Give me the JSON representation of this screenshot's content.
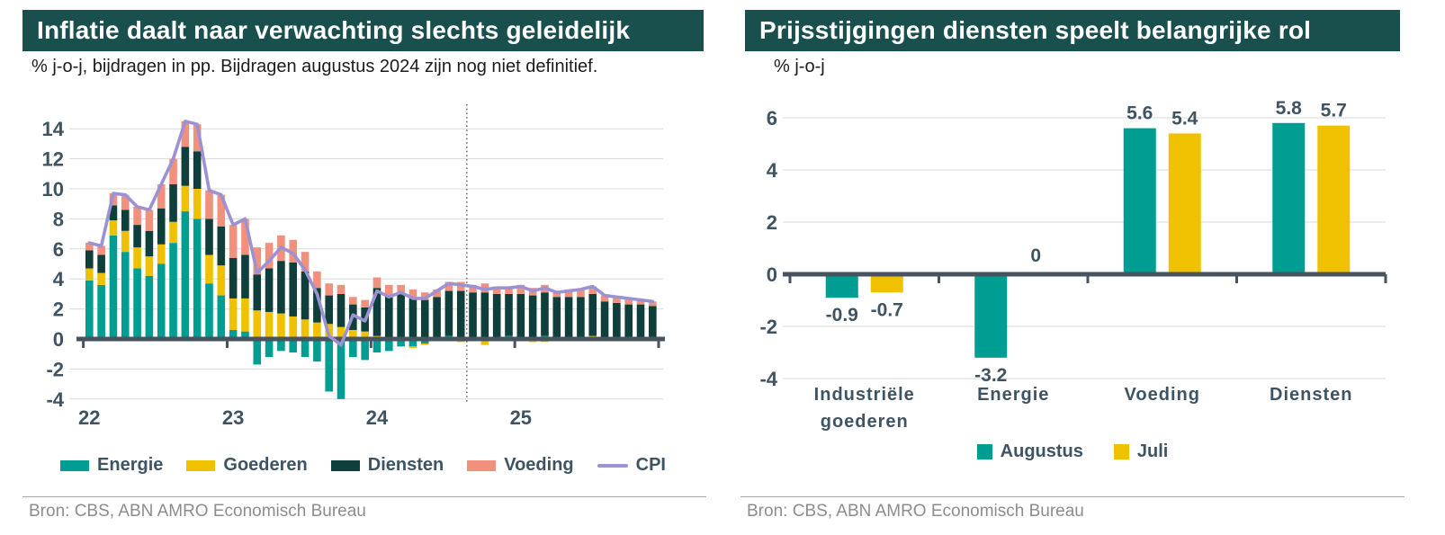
{
  "colors": {
    "header_bg": "#19504e",
    "header_text": "#ffffff",
    "energie": "#009e92",
    "goederen": "#efc100",
    "diensten": "#0f3f3a",
    "voeding": "#f1907c",
    "cpi_line": "#9c92d3",
    "axis": "#47545f",
    "tick_text": "#3e5462",
    "gridline": "#dadada",
    "forecast_line": "#3a3a3a",
    "source_text": "#8c8c8c"
  },
  "chart_data": [
    {
      "type": "bar",
      "stacked": true,
      "title": "Inflatie daalt naar verwachting slechts geleidelijk",
      "subtitle": "% j-o-j, bijdragen in pp. Bijdragen augustus 2024 zijn nog niet definitief.",
      "source": "Bron: CBS, ABN AMRO Economisch Bureau",
      "x": [
        "2022-01",
        "2022-02",
        "2022-03",
        "2022-04",
        "2022-05",
        "2022-06",
        "2022-07",
        "2022-08",
        "2022-09",
        "2022-10",
        "2022-11",
        "2022-12",
        "2023-01",
        "2023-02",
        "2023-03",
        "2023-04",
        "2023-05",
        "2023-06",
        "2023-07",
        "2023-08",
        "2023-09",
        "2023-10",
        "2023-11",
        "2023-12",
        "2024-01",
        "2024-02",
        "2024-03",
        "2024-04",
        "2024-05",
        "2024-06",
        "2024-07",
        "2024-08",
        "2024-09",
        "2024-10",
        "2024-11",
        "2024-12",
        "2025-01",
        "2025-02",
        "2025-03",
        "2025-04",
        "2025-05",
        "2025-06",
        "2025-07",
        "2025-08",
        "2025-09",
        "2025-10",
        "2025-11",
        "2025-12"
      ],
      "x_tick_labels": [
        "22",
        "23",
        "24",
        "25"
      ],
      "x_tick_positions": [
        0,
        12,
        24,
        36
      ],
      "ylim": [
        -5,
        15
      ],
      "yticks": [
        -4,
        -2,
        0,
        2,
        4,
        6,
        8,
        10,
        12,
        14
      ],
      "grid": true,
      "forecast_divider_after_index": 31,
      "series": [
        {
          "name": "Energie",
          "color_key": "energie",
          "values": [
            3.9,
            3.6,
            6.9,
            5.8,
            4.7,
            4.2,
            5.0,
            6.4,
            8.5,
            8.0,
            3.7,
            2.9,
            0.6,
            0.5,
            -1.7,
            -1.2,
            -0.8,
            -0.9,
            -1.2,
            -1.5,
            -3.5,
            -4.0,
            -1.2,
            -1.4,
            -0.9,
            -0.8,
            -0.5,
            -0.5,
            -0.3,
            0.1,
            0.2,
            0.1,
            0.1,
            -0.1,
            0.1,
            0.2,
            0.0,
            -0.1,
            0.2,
            0.0,
            0.1,
            0.0,
            0.1,
            0.0,
            0.0,
            0.0,
            0.0,
            0.0
          ]
        },
        {
          "name": "Goederen",
          "color_key": "goederen",
          "values": [
            0.8,
            0.8,
            1.0,
            1.4,
            1.4,
            1.3,
            1.3,
            1.4,
            1.7,
            2.0,
            1.9,
            2.0,
            2.1,
            2.2,
            1.9,
            1.8,
            1.7,
            1.5,
            1.3,
            1.1,
            1.0,
            0.8,
            0.6,
            0.5,
            0.2,
            0.1,
            0.1,
            -0.1,
            -0.1,
            -0.1,
            -0.1,
            -0.2,
            -0.1,
            -0.3,
            -0.1,
            -0.1,
            -0.1,
            -0.1,
            -0.2,
            -0.1,
            -0.1,
            0.0,
            0.1,
            0.1,
            0.0,
            0.0,
            0.1,
            0.0
          ]
        },
        {
          "name": "Diensten",
          "color_key": "diensten",
          "values": [
            1.2,
            1.2,
            1.0,
            1.4,
            1.5,
            1.7,
            2.4,
            2.5,
            2.6,
            2.5,
            2.4,
            2.6,
            2.7,
            2.9,
            2.4,
            2.9,
            3.5,
            3.6,
            3.2,
            2.3,
            1.9,
            2.2,
            1.7,
            1.6,
            3.2,
            2.8,
            2.9,
            2.7,
            2.6,
            2.7,
            3.0,
            3.1,
            3.0,
            3.1,
            2.9,
            2.8,
            3.0,
            2.9,
            2.9,
            2.8,
            2.7,
            2.8,
            2.8,
            2.4,
            2.4,
            2.3,
            2.2,
            2.2
          ]
        },
        {
          "name": "Voeding",
          "color_key": "voeding",
          "values": [
            0.5,
            0.6,
            0.8,
            1.0,
            1.2,
            1.4,
            1.6,
            1.7,
            1.7,
            1.8,
            1.9,
            2.1,
            2.2,
            2.4,
            1.8,
            1.7,
            1.7,
            1.5,
            1.3,
            1.1,
            0.8,
            0.6,
            0.5,
            0.5,
            0.7,
            0.7,
            0.6,
            0.6,
            0.5,
            0.5,
            0.6,
            0.6,
            0.5,
            0.6,
            0.5,
            0.5,
            0.6,
            0.5,
            0.5,
            0.4,
            0.5,
            0.5,
            0.5,
            0.4,
            0.4,
            0.4,
            0.3,
            0.3
          ]
        }
      ],
      "line": {
        "name": "CPI",
        "color_key": "cpi_line",
        "values": [
          6.4,
          6.2,
          9.7,
          9.6,
          8.8,
          8.6,
          10.3,
          12.0,
          14.5,
          14.3,
          9.9,
          9.6,
          7.6,
          8.0,
          4.4,
          5.2,
          6.1,
          5.7,
          4.6,
          3.0,
          0.2,
          -0.4,
          1.6,
          1.2,
          3.2,
          2.8,
          3.1,
          2.7,
          2.7,
          3.2,
          3.7,
          3.6,
          3.5,
          3.3,
          3.4,
          3.4,
          3.5,
          3.2,
          3.4,
          3.1,
          3.2,
          3.3,
          3.5,
          2.9,
          2.8,
          2.7,
          2.6,
          2.5
        ]
      },
      "legend": [
        "Energie",
        "Goederen",
        "Diensten",
        "Voeding",
        "CPI"
      ]
    },
    {
      "type": "bar",
      "grouped": true,
      "title": "Prijsstijgingen diensten speelt belangrijke rol",
      "subtitle": "% j-o-j",
      "source": "Bron: CBS, ABN AMRO Economisch Bureau",
      "categories": [
        "Industriële goederen",
        "Energie",
        "Voeding",
        "Diensten"
      ],
      "ylim": [
        -4.8,
        6.8
      ],
      "yticks": [
        -4,
        -2,
        0,
        2,
        4,
        6
      ],
      "grid": true,
      "series": [
        {
          "name": "Augustus",
          "color_key": "energie",
          "values": [
            -0.9,
            -3.2,
            5.6,
            5.8
          ],
          "labels": [
            "-0.9",
            "-3.2",
            "5.6",
            "5.8"
          ]
        },
        {
          "name": "Juli",
          "color_key": "goederen",
          "values": [
            -0.7,
            0,
            5.4,
            5.7
          ],
          "labels": [
            "-0.7",
            "0",
            "5.4",
            "5.7"
          ]
        }
      ],
      "legend": [
        "Augustus",
        "Juli"
      ]
    }
  ]
}
